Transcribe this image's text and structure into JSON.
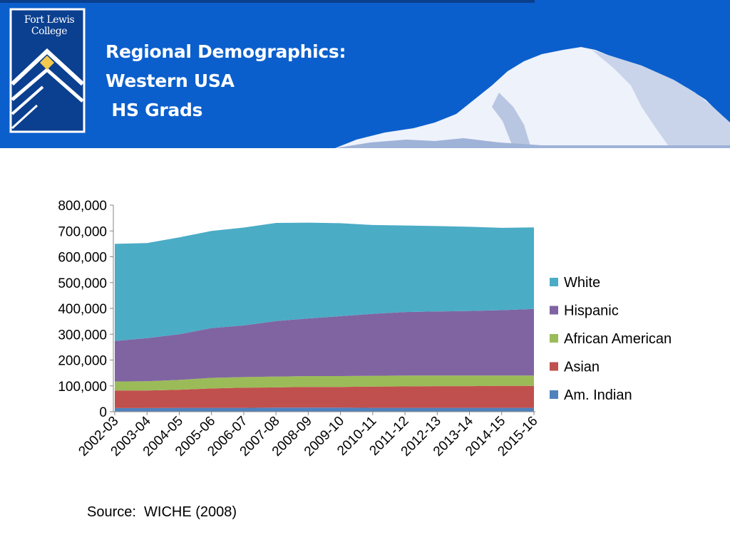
{
  "slide": {
    "title_lines": [
      "Regional Demographics:",
      "Western USA",
      " HS Grads"
    ],
    "logo_lines": [
      "Fort Lewis",
      "College"
    ],
    "source": "Source:  WICHE (2008)"
  },
  "colors": {
    "banner": "#0b5fcc",
    "White": "#4bacc6",
    "Hispanic": "#8064a2",
    "African American": "#9bbb59",
    "Asian": "#c0504d",
    "Am. Indian": "#4f81bd"
  },
  "chart_data": {
    "type": "area",
    "stacked": true,
    "categories": [
      "2002-03",
      "2003-04",
      "2004-05",
      "2005-06",
      "2006-07",
      "2007-08",
      "2008-09",
      "2009-10",
      "2010-11",
      "2011-12",
      "2012-13",
      "2013-14",
      "2014-15",
      "2015-16"
    ],
    "series": [
      {
        "name": "Am. Indian",
        "values": [
          14000,
          14000,
          15000,
          15000,
          15000,
          16000,
          16000,
          16000,
          15000,
          15000,
          15000,
          15000,
          15000,
          15000
        ]
      },
      {
        "name": "Asian",
        "values": [
          68000,
          68000,
          70000,
          75000,
          78000,
          78000,
          80000,
          80000,
          82000,
          83000,
          84000,
          84000,
          85000,
          85000
        ]
      },
      {
        "name": "African American",
        "values": [
          35000,
          36000,
          38000,
          41000,
          41000,
          42000,
          42000,
          42000,
          42000,
          42000,
          41000,
          41000,
          40000,
          40000
        ]
      },
      {
        "name": "Hispanic",
        "values": [
          157000,
          167000,
          177000,
          193000,
          200000,
          215000,
          223000,
          232000,
          240000,
          246000,
          248000,
          250000,
          253000,
          258000
        ]
      },
      {
        "name": "White",
        "values": [
          376000,
          368000,
          375000,
          376000,
          379000,
          380000,
          371000,
          360000,
          344000,
          335000,
          331000,
          326000,
          319000,
          316000
        ]
      }
    ],
    "legend_order": [
      "White",
      "Hispanic",
      "African American",
      "Asian",
      "Am. Indian"
    ],
    "ylim": [
      0,
      800000
    ],
    "yticks": [
      0,
      100000,
      200000,
      300000,
      400000,
      500000,
      600000,
      700000,
      800000
    ],
    "ytick_labels": [
      "0",
      "100,000",
      "200,000",
      "300,000",
      "400,000",
      "500,000",
      "600,000",
      "700,000",
      "800,000"
    ],
    "grid": false,
    "legend_position": "right"
  }
}
